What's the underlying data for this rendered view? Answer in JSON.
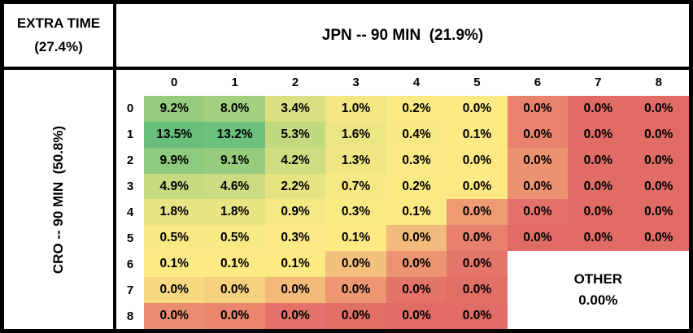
{
  "header": {
    "extra_time_line1": "EXTRA TIME",
    "extra_time_line2": "(27.4%)",
    "top_label": "JPN -- 90 MIN  (21.9%)",
    "left_label": "CRO -- 90 MIN  (50.8%)"
  },
  "chart_data": {
    "type": "heatmap",
    "x_axis_label": "JPN -- 90 MIN",
    "x_axis_probability": "21.9%",
    "y_axis_label": "CRO -- 90 MIN",
    "y_axis_probability": "50.8%",
    "extra_time_label": "EXTRA TIME",
    "extra_time_probability": "27.4%",
    "unit": "%",
    "col_headers": [
      "0",
      "1",
      "2",
      "3",
      "4",
      "5",
      "6",
      "7",
      "8"
    ],
    "row_headers": [
      "0",
      "1",
      "2",
      "3",
      "4",
      "5",
      "6",
      "7",
      "8"
    ],
    "values": [
      [
        "9.2%",
        "8.0%",
        "3.4%",
        "1.0%",
        "0.2%",
        "0.0%",
        "0.0%",
        "0.0%",
        "0.0%"
      ],
      [
        "13.5%",
        "13.2%",
        "5.3%",
        "1.6%",
        "0.4%",
        "0.1%",
        "0.0%",
        "0.0%",
        "0.0%"
      ],
      [
        "9.9%",
        "9.1%",
        "4.2%",
        "1.3%",
        "0.3%",
        "0.0%",
        "0.0%",
        "0.0%",
        "0.0%"
      ],
      [
        "4.9%",
        "4.6%",
        "2.2%",
        "0.7%",
        "0.2%",
        "0.0%",
        "0.0%",
        "0.0%",
        "0.0%"
      ],
      [
        "1.8%",
        "1.8%",
        "0.9%",
        "0.3%",
        "0.1%",
        "0.0%",
        "0.0%",
        "0.0%",
        "0.0%"
      ],
      [
        "0.5%",
        "0.5%",
        "0.3%",
        "0.1%",
        "0.0%",
        "0.0%",
        "0.0%",
        "0.0%",
        "0.0%"
      ],
      [
        "0.1%",
        "0.1%",
        "0.1%",
        "0.0%",
        "0.0%",
        "0.0%",
        null,
        null,
        null
      ],
      [
        "0.0%",
        "0.0%",
        "0.0%",
        "0.0%",
        "0.0%",
        "0.0%",
        null,
        null,
        null
      ],
      [
        "0.0%",
        "0.0%",
        "0.0%",
        "0.0%",
        "0.0%",
        "0.0%",
        null,
        null,
        null
      ]
    ],
    "colors": [
      [
        "#95cc7e",
        "#a3d07f",
        "#d8e082",
        "#f3e783",
        "#fbea84",
        "#feea84",
        "#e8816e",
        "#e06c65",
        "#e06c65"
      ],
      [
        "#68bf7c",
        "#6bc07d",
        "#c2d980",
        "#ece583",
        "#f9e984",
        "#fdea84",
        "#e8816e",
        "#e06c65",
        "#e06c65"
      ],
      [
        "#8dca7d",
        "#96cc7e",
        "#cfdc81",
        "#efe683",
        "#fae984",
        "#feea84",
        "#ec9271",
        "#e06c65",
        "#e06c65"
      ],
      [
        "#c6da80",
        "#cadb81",
        "#e6e382",
        "#f6e883",
        "#fbea84",
        "#feea84",
        "#ec9271",
        "#e06c65",
        "#e06c65"
      ],
      [
        "#eae483",
        "#eae483",
        "#f4e883",
        "#faea84",
        "#fdea84",
        "#ee9a73",
        "#e3726a",
        "#e06c65",
        "#e06c65"
      ],
      [
        "#f8e984",
        "#f8e984",
        "#fae984",
        "#fdea84",
        "#f2ba7b",
        "#e8806d",
        "#e06c65",
        "#e06c65",
        "#e06c65"
      ],
      [
        "#fdea84",
        "#fdea84",
        "#feea84",
        "#f3c17d",
        "#ec9471",
        "#e4766b",
        null,
        null,
        null
      ],
      [
        "#f6d981",
        "#f4d07f",
        "#f3ba7a",
        "#ee9772",
        "#e3746a",
        "#e06f66",
        null,
        null,
        null
      ],
      [
        "#eb8c70",
        "#e9866d",
        "#e3726a",
        "#e06f66",
        "#e06c65",
        "#e06c65",
        null,
        null,
        null
      ]
    ],
    "colorscale": {
      "low": "#e06c65",
      "mid": "#ffeb84",
      "high": "#63be7b"
    },
    "other_label": "OTHER",
    "other_value": "0.00%"
  }
}
